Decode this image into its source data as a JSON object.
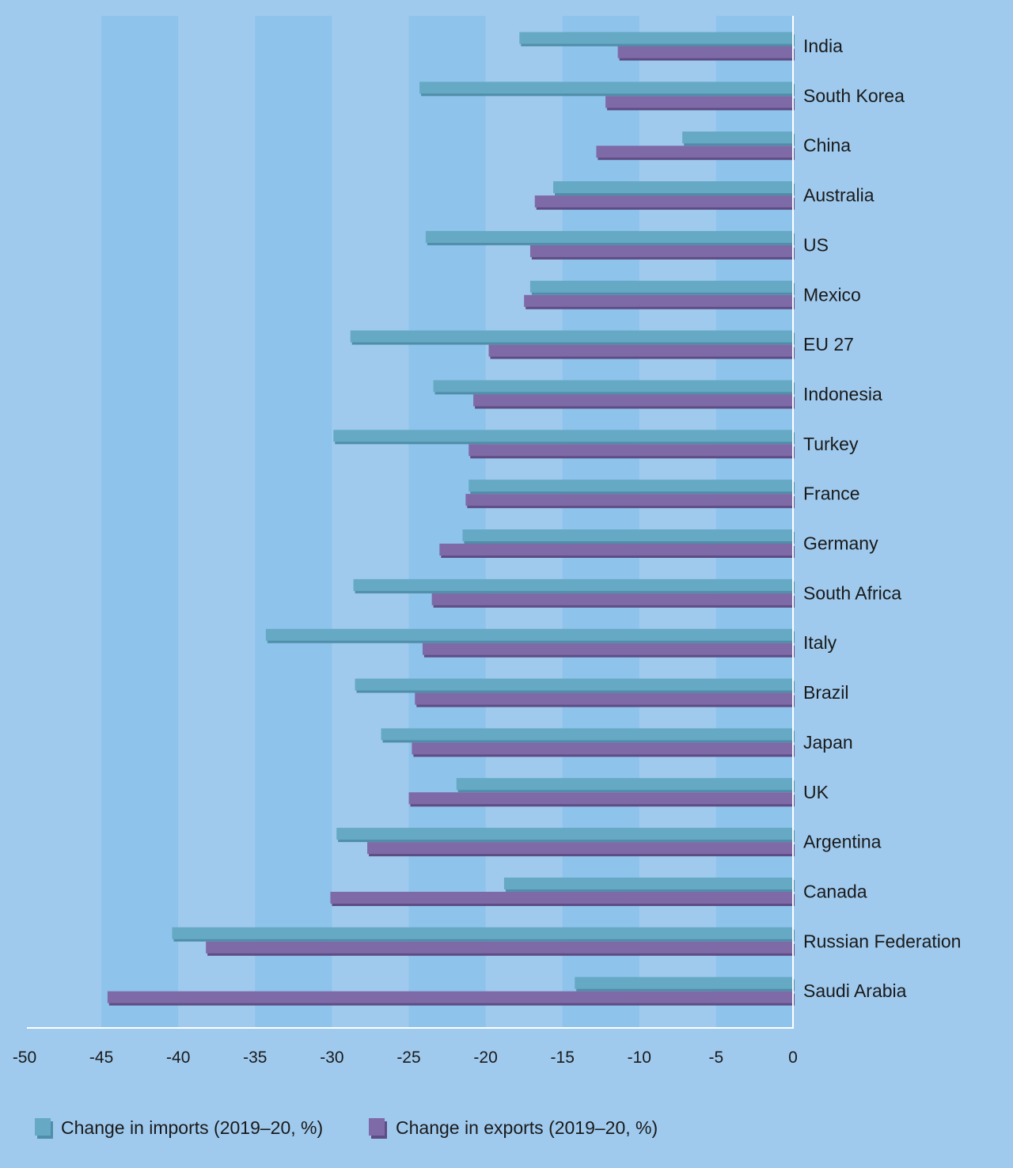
{
  "colors": {
    "background": "#9fcaee",
    "band": "#8ec3ec",
    "imports": "#66a9c4",
    "imports_shadow": "#4f8ea9",
    "exports": "#7f6aa8",
    "exports_shadow": "#5e4d84",
    "axis": "#ffffff",
    "text": "#1a1a1a"
  },
  "chart_data": {
    "type": "bar",
    "orientation": "horizontal",
    "title": "",
    "xlabel": "",
    "ylabel": "",
    "xlim": [
      -50,
      0
    ],
    "x_ticks": [
      -50,
      -45,
      -40,
      -35,
      -30,
      -25,
      -20,
      -15,
      -10,
      -5,
      0
    ],
    "x_tick_labels": [
      "-50",
      "-45",
      "-40",
      "-35",
      "-30",
      "-25",
      "-20",
      "-15",
      "-10",
      "-5",
      "0"
    ],
    "grid": "alternating vertical bands every 5 units",
    "legend_position": "bottom-left",
    "categories": [
      "India",
      "South Korea",
      "China",
      "Australia",
      "US",
      "Mexico",
      "EU 27",
      "Indonesia",
      "Turkey",
      "France",
      "Germany",
      "South Africa",
      "Italy",
      "Brazil",
      "Japan",
      "UK",
      "Argentina",
      "Canada",
      "Russian Federation",
      "Saudi Arabia"
    ],
    "series": [
      {
        "name": "Change in imports (2019–20, %)",
        "key": "imports",
        "values": [
          -17.8,
          -24.3,
          -7.2,
          -15.6,
          -23.9,
          -17.1,
          -28.8,
          -23.4,
          -29.9,
          -21.1,
          -21.5,
          -28.6,
          -34.3,
          -28.5,
          -26.8,
          -21.9,
          -29.7,
          -18.8,
          -40.4,
          -14.2
        ]
      },
      {
        "name": "Change in exports (2019–20, %)",
        "key": "exports",
        "values": [
          -11.4,
          -12.2,
          -12.8,
          -16.8,
          -17.1,
          -17.5,
          -19.8,
          -20.8,
          -21.1,
          -21.3,
          -23.0,
          -23.5,
          -24.1,
          -24.6,
          -24.8,
          -25.0,
          -27.7,
          -30.1,
          -38.2,
          -44.6
        ]
      }
    ]
  }
}
